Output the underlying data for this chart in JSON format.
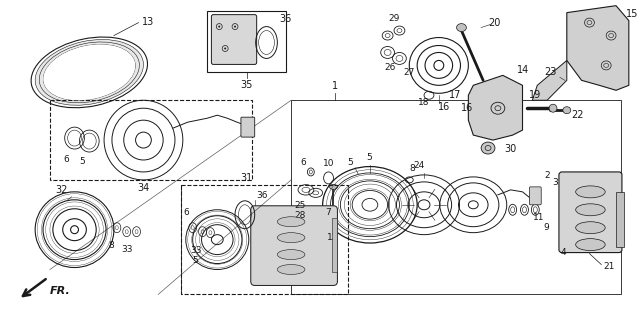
{
  "bg_color": "#ffffff",
  "line_color": "#1a1a1a",
  "fig_width": 6.4,
  "fig_height": 3.15,
  "dpi": 100
}
